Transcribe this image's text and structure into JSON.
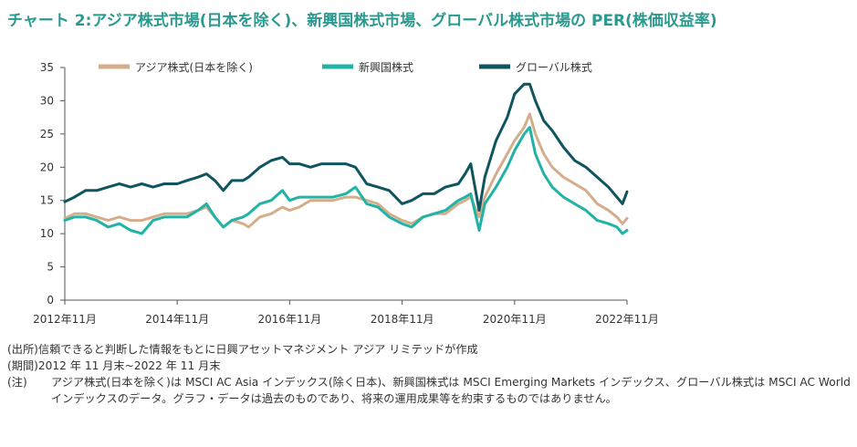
{
  "title": "チャート 2:アジア株式市場(日本を除く)、新興国株式市場、グローバル株式市場の PER(株価収益率)",
  "chart_data": {
    "type": "line",
    "ylim": [
      0,
      35
    ],
    "yticks": [
      0,
      5,
      10,
      15,
      20,
      25,
      30,
      35
    ],
    "xticks": [
      {
        "x": 2012.83,
        "label": "2012年11月"
      },
      {
        "x": 2014.83,
        "label": "2014年11月"
      },
      {
        "x": 2016.83,
        "label": "2016年11月"
      },
      {
        "x": 2018.83,
        "label": "2018年11月"
      },
      {
        "x": 2020.83,
        "label": "2020年11月"
      },
      {
        "x": 2022.83,
        "label": "2022年11月"
      }
    ],
    "xlim": [
      2012.83,
      2022.83
    ],
    "legend_position": "top",
    "series": [
      {
        "name": "アジア株式(日本を除く)",
        "color": "#d4ae8a",
        "points": [
          [
            2012.83,
            12.3
          ],
          [
            2013.0,
            13.0
          ],
          [
            2013.2,
            13.0
          ],
          [
            2013.4,
            12.5
          ],
          [
            2013.6,
            12.0
          ],
          [
            2013.8,
            12.5
          ],
          [
            2014.0,
            12.0
          ],
          [
            2014.2,
            12.0
          ],
          [
            2014.4,
            12.5
          ],
          [
            2014.6,
            13.0
          ],
          [
            2014.83,
            13.0
          ],
          [
            2015.0,
            13.0
          ],
          [
            2015.2,
            13.5
          ],
          [
            2015.35,
            14.0
          ],
          [
            2015.5,
            12.5
          ],
          [
            2015.65,
            11.0
          ],
          [
            2015.8,
            12.0
          ],
          [
            2016.0,
            11.5
          ],
          [
            2016.1,
            11.0
          ],
          [
            2016.3,
            12.5
          ],
          [
            2016.5,
            13.0
          ],
          [
            2016.7,
            14.0
          ],
          [
            2016.83,
            13.5
          ],
          [
            2017.0,
            14.0
          ],
          [
            2017.2,
            15.0
          ],
          [
            2017.4,
            15.0
          ],
          [
            2017.6,
            15.0
          ],
          [
            2017.83,
            15.5
          ],
          [
            2018.0,
            15.5
          ],
          [
            2018.2,
            15.0
          ],
          [
            2018.4,
            14.5
          ],
          [
            2018.6,
            13.0
          ],
          [
            2018.83,
            12.0
          ],
          [
            2019.0,
            11.5
          ],
          [
            2019.2,
            12.5
          ],
          [
            2019.4,
            13.0
          ],
          [
            2019.6,
            13.0
          ],
          [
            2019.83,
            14.5
          ],
          [
            2019.95,
            15.0
          ],
          [
            2020.05,
            15.5
          ],
          [
            2020.2,
            12.5
          ],
          [
            2020.3,
            15.5
          ],
          [
            2020.5,
            19.0
          ],
          [
            2020.7,
            22.0
          ],
          [
            2020.83,
            24.0
          ],
          [
            2021.0,
            26.0
          ],
          [
            2021.1,
            28.0
          ],
          [
            2021.2,
            25.0
          ],
          [
            2021.35,
            22.0
          ],
          [
            2021.5,
            20.0
          ],
          [
            2021.7,
            18.5
          ],
          [
            2021.9,
            17.5
          ],
          [
            2022.1,
            16.5
          ],
          [
            2022.3,
            14.5
          ],
          [
            2022.5,
            13.5
          ],
          [
            2022.65,
            12.5
          ],
          [
            2022.75,
            11.5
          ],
          [
            2022.83,
            12.3
          ]
        ]
      },
      {
        "name": "新興国株式",
        "color": "#20b3a6",
        "points": [
          [
            2012.83,
            12.0
          ],
          [
            2013.0,
            12.5
          ],
          [
            2013.2,
            12.5
          ],
          [
            2013.4,
            12.0
          ],
          [
            2013.6,
            11.0
          ],
          [
            2013.8,
            11.5
          ],
          [
            2014.0,
            10.5
          ],
          [
            2014.2,
            10.0
          ],
          [
            2014.4,
            12.0
          ],
          [
            2014.6,
            12.5
          ],
          [
            2014.83,
            12.5
          ],
          [
            2015.0,
            12.5
          ],
          [
            2015.2,
            13.5
          ],
          [
            2015.35,
            14.5
          ],
          [
            2015.5,
            12.5
          ],
          [
            2015.65,
            11.0
          ],
          [
            2015.8,
            12.0
          ],
          [
            2016.0,
            12.5
          ],
          [
            2016.1,
            13.0
          ],
          [
            2016.3,
            14.5
          ],
          [
            2016.5,
            15.0
          ],
          [
            2016.7,
            16.5
          ],
          [
            2016.83,
            15.0
          ],
          [
            2017.0,
            15.5
          ],
          [
            2017.2,
            15.5
          ],
          [
            2017.4,
            15.5
          ],
          [
            2017.6,
            15.5
          ],
          [
            2017.83,
            16.0
          ],
          [
            2018.0,
            17.0
          ],
          [
            2018.2,
            14.5
          ],
          [
            2018.4,
            14.0
          ],
          [
            2018.6,
            12.5
          ],
          [
            2018.83,
            11.5
          ],
          [
            2019.0,
            11.0
          ],
          [
            2019.2,
            12.5
          ],
          [
            2019.4,
            13.0
          ],
          [
            2019.6,
            13.5
          ],
          [
            2019.83,
            15.0
          ],
          [
            2019.95,
            15.5
          ],
          [
            2020.05,
            16.0
          ],
          [
            2020.2,
            10.5
          ],
          [
            2020.3,
            14.5
          ],
          [
            2020.5,
            17.0
          ],
          [
            2020.7,
            20.0
          ],
          [
            2020.83,
            22.5
          ],
          [
            2021.0,
            25.0
          ],
          [
            2021.1,
            26.0
          ],
          [
            2021.2,
            22.0
          ],
          [
            2021.35,
            19.0
          ],
          [
            2021.5,
            17.0
          ],
          [
            2021.7,
            15.5
          ],
          [
            2021.9,
            14.5
          ],
          [
            2022.1,
            13.5
          ],
          [
            2022.3,
            12.0
          ],
          [
            2022.5,
            11.5
          ],
          [
            2022.65,
            11.0
          ],
          [
            2022.75,
            10.0
          ],
          [
            2022.83,
            10.5
          ]
        ]
      },
      {
        "name": "グローバル株式",
        "color": "#0f5560",
        "points": [
          [
            2012.83,
            14.8
          ],
          [
            2013.0,
            15.5
          ],
          [
            2013.2,
            16.5
          ],
          [
            2013.4,
            16.5
          ],
          [
            2013.6,
            17.0
          ],
          [
            2013.8,
            17.5
          ],
          [
            2014.0,
            17.0
          ],
          [
            2014.2,
            17.5
          ],
          [
            2014.4,
            17.0
          ],
          [
            2014.6,
            17.5
          ],
          [
            2014.83,
            17.5
          ],
          [
            2015.0,
            18.0
          ],
          [
            2015.2,
            18.5
          ],
          [
            2015.35,
            19.0
          ],
          [
            2015.5,
            18.0
          ],
          [
            2015.65,
            16.5
          ],
          [
            2015.8,
            18.0
          ],
          [
            2016.0,
            18.0
          ],
          [
            2016.1,
            18.5
          ],
          [
            2016.3,
            20.0
          ],
          [
            2016.5,
            21.0
          ],
          [
            2016.7,
            21.5
          ],
          [
            2016.83,
            20.5
          ],
          [
            2017.0,
            20.5
          ],
          [
            2017.2,
            20.0
          ],
          [
            2017.4,
            20.5
          ],
          [
            2017.6,
            20.5
          ],
          [
            2017.83,
            20.5
          ],
          [
            2018.0,
            20.0
          ],
          [
            2018.2,
            17.5
          ],
          [
            2018.4,
            17.0
          ],
          [
            2018.6,
            16.5
          ],
          [
            2018.83,
            14.5
          ],
          [
            2019.0,
            15.0
          ],
          [
            2019.2,
            16.0
          ],
          [
            2019.4,
            16.0
          ],
          [
            2019.6,
            17.0
          ],
          [
            2019.83,
            17.5
          ],
          [
            2019.95,
            19.0
          ],
          [
            2020.05,
            20.5
          ],
          [
            2020.2,
            13.5
          ],
          [
            2020.3,
            18.5
          ],
          [
            2020.5,
            24.0
          ],
          [
            2020.7,
            27.5
          ],
          [
            2020.83,
            31.0
          ],
          [
            2021.0,
            32.5
          ],
          [
            2021.1,
            32.5
          ],
          [
            2021.2,
            30.0
          ],
          [
            2021.35,
            27.0
          ],
          [
            2021.5,
            25.5
          ],
          [
            2021.7,
            23.0
          ],
          [
            2021.9,
            21.0
          ],
          [
            2022.1,
            20.0
          ],
          [
            2022.3,
            18.5
          ],
          [
            2022.5,
            17.0
          ],
          [
            2022.65,
            15.5
          ],
          [
            2022.75,
            14.5
          ],
          [
            2022.83,
            16.3
          ]
        ]
      }
    ]
  },
  "notes": [
    {
      "label": "(出所)",
      "text": "信頼できると判断した情報をもとに日興アセットマネジメント アジア リミテッドが作成"
    },
    {
      "label": "(期間)",
      "text": "2012 年 11 月末~2022 年 11 月末"
    },
    {
      "label": "(注)",
      "text": "アジア株式(日本を除く)は MSCI AC Asia インデックス(除く日本)、新興国株式は MSCI Emerging Markets インデックス、グローバル株式は MSCI AC World インデックスのデータ。グラフ・データは過去のものであり、将来の運用成果等を約束するものではありません。"
    }
  ]
}
